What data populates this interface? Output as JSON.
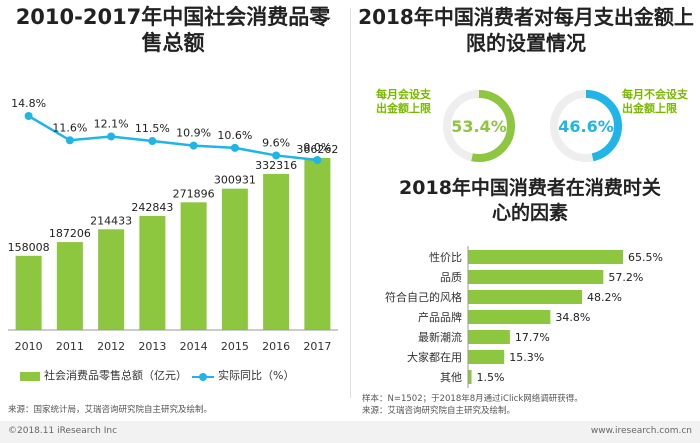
{
  "colors": {
    "bar": "#8dc63f",
    "line": "#1fb5e8",
    "donut_green": "#8dc63f",
    "donut_blue": "#1fb5e8",
    "donut_text": "#7ab800"
  },
  "left": {
    "title": "2010-2017年中国社会消费品零售总额",
    "source": "来源：国家统计局，艾瑞咨询研究院自主研究及绘制。"
  },
  "donut": {
    "title": "2018年中国消费者对每月支出金额上限的设置情况",
    "label_limit": "每月会设支出金额上限",
    "label_nolimit": "每月不会设支出金额上限"
  },
  "factors": {
    "title": "2018年中国消费者在消费时关心的因素",
    "note": "样本：N=1502；于2018年8月通过iClick网络调研获得。",
    "source": "来源：艾瑞咨询研究院自主研究及绘制。"
  },
  "footer": {
    "copyright": "©2018.11 iResearch Inc",
    "site": "www.iresearch.com.cn"
  },
  "chart_data": [
    {
      "type": "bar",
      "title": "2010-2017年中国社会消费品零售总额",
      "categories": [
        "2010",
        "2011",
        "2012",
        "2013",
        "2014",
        "2015",
        "2016",
        "2017"
      ],
      "series": [
        {
          "name": "社会消费品零售总额（亿元）",
          "type": "bar",
          "values": [
            158008,
            187206,
            214433,
            242843,
            271896,
            300931,
            332316,
            366262
          ]
        },
        {
          "name": "实际同比（%）",
          "type": "line",
          "values": [
            14.8,
            11.6,
            12.1,
            11.5,
            10.9,
            10.6,
            9.6,
            9.0
          ],
          "labels": [
            "14.8%",
            "11.6%",
            "12.1%",
            "11.5%",
            "10.9%",
            "10.6%",
            "9.6%",
            "9.0%"
          ]
        }
      ],
      "legend_placement": "bottom"
    },
    {
      "type": "pie",
      "title": "2018年中国消费者对每月支出金额上限的设置情况",
      "slices": [
        {
          "name": "每月会设支出金额上限",
          "value": 53.4,
          "label": "53.4%"
        },
        {
          "name": "每月不会设支出金额上限",
          "value": 46.6,
          "label": "46.6%"
        }
      ]
    },
    {
      "type": "bar",
      "orientation": "horizontal",
      "title": "2018年中国消费者在消费时关心的因素",
      "categories": [
        "性价比",
        "品质",
        "符合自己的风格",
        "产品品牌",
        "最新潮流",
        "大家都在用",
        "其他"
      ],
      "values": [
        65.5,
        57.2,
        48.2,
        34.8,
        17.7,
        15.3,
        1.5
      ],
      "labels": [
        "65.5%",
        "57.2%",
        "48.2%",
        "34.8%",
        "17.7%",
        "15.3%",
        "1.5%"
      ]
    }
  ]
}
